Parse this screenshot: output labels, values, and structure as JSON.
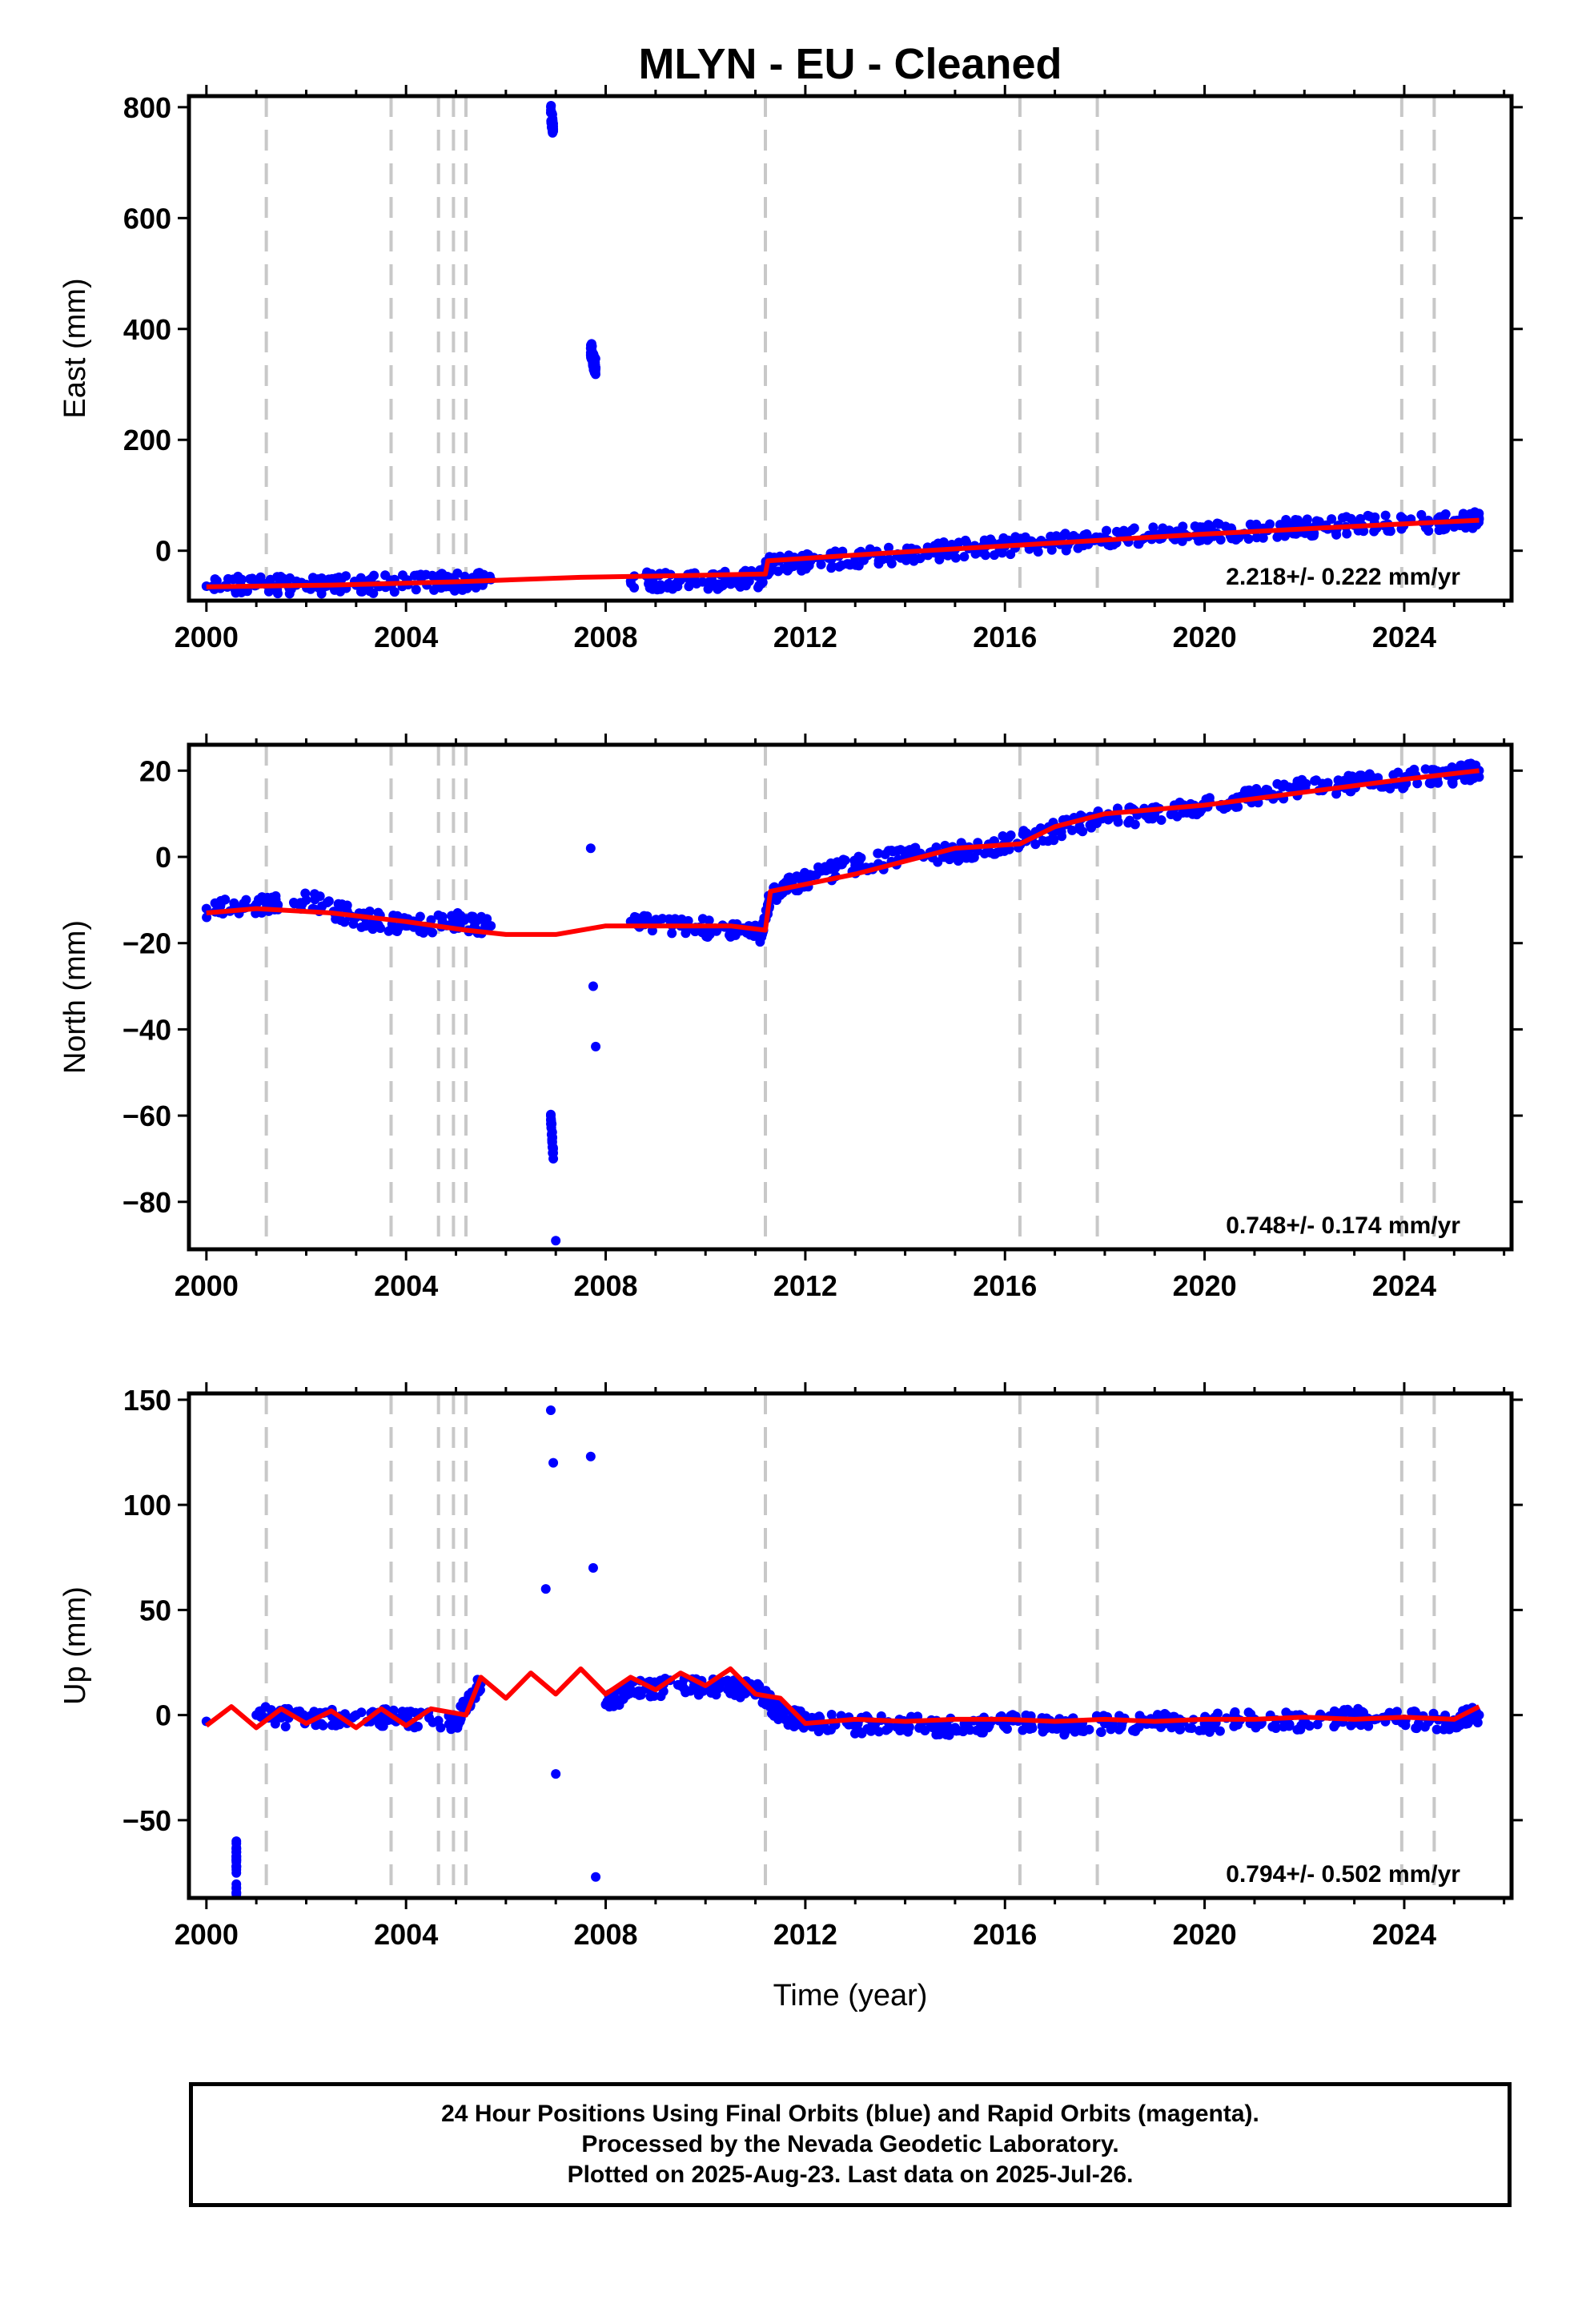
{
  "title": "MLYN  - EU - Cleaned",
  "chart_data": [
    {
      "type": "scatter",
      "ylabel": "East (mm)",
      "rate_label": "2.218+/- 0.222 mm/yr",
      "xlim": [
        1999.65,
        2026.15
      ],
      "ylim": [
        -90,
        820
      ],
      "yticks": [
        0,
        200,
        400,
        600,
        800
      ],
      "xticks": [
        2000,
        2004,
        2008,
        2012,
        2016,
        2020,
        2024
      ],
      "offset_lines": [
        2001.2,
        2003.7,
        2004.65,
        2004.95,
        2005.2,
        2011.2,
        2016.3,
        2017.85,
        2023.95,
        2024.6
      ],
      "series": [
        {
          "color": "#0000ff",
          "x": [
            2000.0,
            2001.0,
            2002.0,
            2003.0,
            2004.0,
            2005.0,
            2005.7,
            2006.9,
            2006.95,
            2007.7,
            2007.75,
            2007.8,
            2008.5,
            2009.5,
            2010.5,
            2011.1,
            2011.3,
            2012.0,
            2013.0,
            2014.0,
            2015.0,
            2016.0,
            2017.0,
            2018.0,
            2019.0,
            2020.0,
            2021.0,
            2022.0,
            2023.0,
            2024.0,
            2025.0,
            2025.5
          ],
          "y": [
            -64,
            -62,
            -61,
            -62,
            -58,
            -57,
            -52,
            790,
            760,
            365,
            345,
            330,
            -55,
            -53,
            -54,
            -50,
            -22,
            -20,
            -12,
            -5,
            2,
            8,
            15,
            22,
            28,
            33,
            38,
            42,
            46,
            50,
            54,
            57
          ]
        },
        {
          "color": "#ff0000",
          "x": [
            2000.0,
            2002.5,
            2005.0,
            2007.5,
            2010.0,
            2011.2,
            2011.25,
            2014.0,
            2017.0,
            2020.0,
            2023.0,
            2025.5
          ],
          "y": [
            -65,
            -62,
            -56,
            -48,
            -44,
            -42,
            -18,
            -2,
            14,
            30,
            44,
            55
          ]
        }
      ]
    },
    {
      "type": "scatter",
      "ylabel": "North (mm)",
      "rate_label": "0.748+/- 0.174 mm/yr",
      "xlim": [
        1999.65,
        2026.15
      ],
      "ylim": [
        -91,
        26
      ],
      "yticks": [
        -80,
        -60,
        -40,
        -20,
        0,
        20
      ],
      "xticks": [
        2000,
        2004,
        2008,
        2012,
        2016,
        2020,
        2024
      ],
      "offset_lines": [
        2001.2,
        2003.7,
        2004.65,
        2004.95,
        2005.2,
        2011.2,
        2016.3,
        2017.85,
        2023.95,
        2024.6
      ],
      "series": [
        {
          "color": "#0000ff",
          "x": [
            2000.0,
            2001.0,
            2002.0,
            2003.0,
            2004.0,
            2005.0,
            2005.7,
            2006.9,
            2006.95,
            2007.0,
            2007.7,
            2007.75,
            2007.8,
            2008.5,
            2009.5,
            2010.5,
            2011.1,
            2011.3,
            2012.0,
            2013.0,
            2014.0,
            2015.0,
            2016.0,
            2017.0,
            2018.0,
            2019.0,
            2020.0,
            2021.0,
            2022.0,
            2023.0,
            2024.0,
            2025.0,
            2025.5
          ],
          "y": [
            -12,
            -11,
            -10,
            -14,
            -16,
            -15,
            -16,
            -60,
            -70,
            -89,
            2,
            -30,
            -44,
            -15,
            -16,
            -17,
            -18,
            -9,
            -5,
            -2,
            0,
            1,
            3,
            6,
            9,
            10,
            12,
            14,
            16,
            17,
            18,
            19,
            20
          ]
        },
        {
          "color": "#ff0000",
          "x": [
            2000.0,
            2001.0,
            2002.5,
            2004.0,
            2005.2,
            2006.0,
            2007.0,
            2008.0,
            2009.0,
            2010.5,
            2011.2,
            2011.3,
            2013.0,
            2015.0,
            2016.3,
            2017.0,
            2018.0,
            2020.0,
            2022.0,
            2024.0,
            2025.5
          ],
          "y": [
            -13,
            -12,
            -13,
            -15,
            -17,
            -18,
            -18,
            -16,
            -16,
            -16,
            -17,
            -8,
            -4,
            2,
            3,
            7,
            10,
            12,
            15,
            18,
            20
          ]
        }
      ]
    },
    {
      "type": "scatter",
      "ylabel": "Up (mm)",
      "rate_label": "0.794+/- 0.502 mm/yr",
      "xlim": [
        1999.65,
        2026.15
      ],
      "ylim": [
        -87,
        153
      ],
      "yticks": [
        -50,
        0,
        50,
        100,
        150
      ],
      "xticks": [
        2000,
        2004,
        2008,
        2012,
        2016,
        2020,
        2024
      ],
      "offset_lines": [
        2001.2,
        2003.7,
        2004.65,
        2004.95,
        2005.2,
        2011.2,
        2016.3,
        2017.85,
        2023.95,
        2024.6
      ],
      "series": [
        {
          "color": "#0000ff",
          "x": [
            2000.0,
            2000.6,
            2000.6,
            2001.0,
            2002.0,
            2003.0,
            2004.0,
            2005.0,
            2005.5,
            2006.8,
            2006.9,
            2006.95,
            2007.0,
            2007.7,
            2007.75,
            2007.8,
            2008.0,
            2008.5,
            2009.5,
            2010.5,
            2011.1,
            2011.5,
            2012.0,
            2013.0,
            2014.0,
            2015.0,
            2016.0,
            2017.0,
            2018.0,
            2019.0,
            2020.0,
            2021.0,
            2022.0,
            2023.0,
            2024.0,
            2025.0,
            2025.5
          ],
          "y": [
            -3,
            -60,
            -82,
            0,
            -2,
            0,
            -2,
            -3,
            15,
            60,
            145,
            120,
            -28,
            123,
            70,
            -77,
            5,
            12,
            14,
            13,
            11,
            0,
            -3,
            -5,
            -4,
            -6,
            -3,
            -6,
            -4,
            -3,
            -4,
            -2,
            -3,
            -1,
            -2,
            -3,
            0
          ]
        },
        {
          "color": "#ff0000",
          "x": [
            2000.0,
            2000.5,
            2001.0,
            2001.5,
            2002.0,
            2002.5,
            2003.0,
            2003.5,
            2004.0,
            2004.5,
            2005.2,
            2005.5,
            2006.0,
            2006.5,
            2007.0,
            2007.5,
            2008.0,
            2008.5,
            2009.0,
            2009.5,
            2010.0,
            2010.5,
            2011.0,
            2011.5,
            2012.0,
            2013.0,
            2014.0,
            2015.0,
            2016.0,
            2017.0,
            2018.0,
            2019.0,
            2020.0,
            2021.0,
            2022.0,
            2023.0,
            2024.0,
            2025.0,
            2025.5
          ],
          "y": [
            -5,
            4,
            -6,
            3,
            -4,
            2,
            -6,
            3,
            -5,
            3,
            0,
            18,
            8,
            20,
            10,
            22,
            10,
            18,
            12,
            20,
            14,
            22,
            10,
            8,
            -4,
            -2,
            -3,
            -2,
            -2,
            -3,
            -2,
            -3,
            -2,
            -2,
            -1,
            -2,
            -1,
            -2,
            4
          ]
        }
      ]
    }
  ],
  "x_axis_label": "Time (year)",
  "footer_lines": [
    "24 Hour Positions Using Final Orbits (blue) and Rapid Orbits (magenta).",
    "Processed by the Nevada Geodetic Laboratory.",
    "Plotted on 2025-Aug-23. Last data on 2025-Jul-26."
  ]
}
